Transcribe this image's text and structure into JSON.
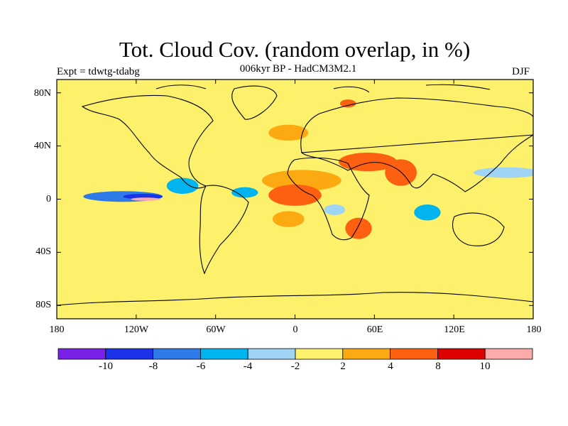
{
  "header": {
    "title": "Tot. Cloud Cov. (random overlap, in %)",
    "subtitle": "006kyr BP - HadCM3M2.1",
    "experiment": "Expt = tdwtg-tdabg",
    "season": "DJF"
  },
  "axes": {
    "lat_ticks": [
      "80N",
      "40N",
      "0",
      "40S",
      "80S"
    ],
    "lon_ticks": [
      "180",
      "120W",
      "60W",
      "0",
      "60E",
      "120E",
      "180"
    ]
  },
  "colorbar": {
    "colors": [
      "#7a21e8",
      "#1a33e8",
      "#2e7ae8",
      "#00b4f0",
      "#9fd4f4",
      "#fdf06a",
      "#fdaa12",
      "#fd6010",
      "#dd0000",
      "#fdaaaa"
    ],
    "labels": [
      "-10",
      "-8",
      "-6",
      "-4",
      "-2",
      "2",
      "4",
      "8",
      "10"
    ]
  },
  "map": {
    "background_color": "#fdf06a",
    "anomaly_regions": [
      {
        "level": 6,
        "label": "Africa (north)",
        "lon": 5,
        "lat": 14,
        "rlon": 30,
        "rlat": 8
      },
      {
        "level": 7,
        "label": "Africa (central)",
        "lon": 0,
        "lat": 3,
        "rlon": 20,
        "rlat": 8
      },
      {
        "level": 7,
        "label": "Arabia / Iran",
        "lon": 55,
        "lat": 28,
        "rlon": 22,
        "rlat": 7
      },
      {
        "level": 7,
        "label": "India",
        "lon": 80,
        "lat": 20,
        "rlon": 12,
        "rlat": 10
      },
      {
        "level": 7,
        "label": "Madagascar",
        "lon": 48,
        "lat": -22,
        "rlon": 10,
        "rlat": 8
      },
      {
        "level": 6,
        "label": "South Atlantic",
        "lon": -5,
        "lat": -15,
        "rlon": 12,
        "rlat": 6
      },
      {
        "level": 7,
        "label": "Greenland Sea",
        "lon": 40,
        "lat": 72,
        "rlon": 6,
        "rlat": 3
      },
      {
        "level": 6,
        "label": "Western Europe",
        "lon": -5,
        "lat": 50,
        "rlon": 15,
        "rlat": 6
      },
      {
        "level": 2,
        "label": "Equatorial East Pacific",
        "lon": -130,
        "lat": 2,
        "rlon": 30,
        "rlat": 4
      },
      {
        "level": 1,
        "label": "Equatorial East Pacific core",
        "lon": -115,
        "lat": 2,
        "rlon": 15,
        "rlat": 2
      },
      {
        "level": 9,
        "label": "Pacific peak",
        "lon": -113,
        "lat": 0,
        "rlon": 11,
        "rlat": 1.2
      },
      {
        "level": 3,
        "label": "Central America",
        "lon": -85,
        "lat": 10,
        "rlon": 12,
        "rlat": 6
      },
      {
        "level": 3,
        "label": "Tropical Atlantic",
        "lon": -38,
        "lat": 5,
        "rlon": 10,
        "rlat": 4
      },
      {
        "level": 4,
        "label": "North Pacific",
        "lon": 160,
        "lat": 20,
        "rlon": 25,
        "rlat": 4
      },
      {
        "level": 3,
        "label": "Indian Ocean",
        "lon": 100,
        "lat": -10,
        "rlon": 10,
        "rlat": 6
      },
      {
        "level": 4,
        "label": "South Atlantic blue",
        "lon": 30,
        "lat": -8,
        "rlon": 8,
        "rlat": 4
      }
    ]
  }
}
